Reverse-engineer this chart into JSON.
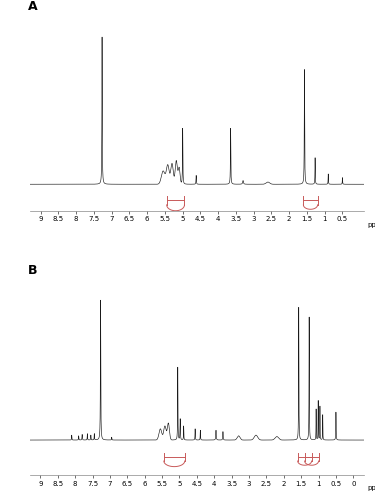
{
  "xlim_A": [
    9.3,
    -0.1
  ],
  "xlim_B": [
    9.3,
    -0.3
  ],
  "xticks_A": [
    9.0,
    8.5,
    8.0,
    7.5,
    7.0,
    6.5,
    6.0,
    5.5,
    5.0,
    4.5,
    4.0,
    3.5,
    3.0,
    2.5,
    2.0,
    1.5,
    1.0,
    0.5
  ],
  "xticks_B": [
    9.0,
    8.5,
    8.0,
    7.5,
    7.0,
    6.5,
    6.0,
    5.5,
    5.0,
    4.5,
    4.0,
    3.5,
    3.0,
    2.5,
    2.0,
    1.5,
    1.0,
    0.5,
    0.0
  ],
  "xlabel": "ppm",
  "label_A": "A",
  "label_B": "B",
  "line_color": "#1a1a1a",
  "background_color": "#ffffff",
  "integration_color": "#c85a5a"
}
